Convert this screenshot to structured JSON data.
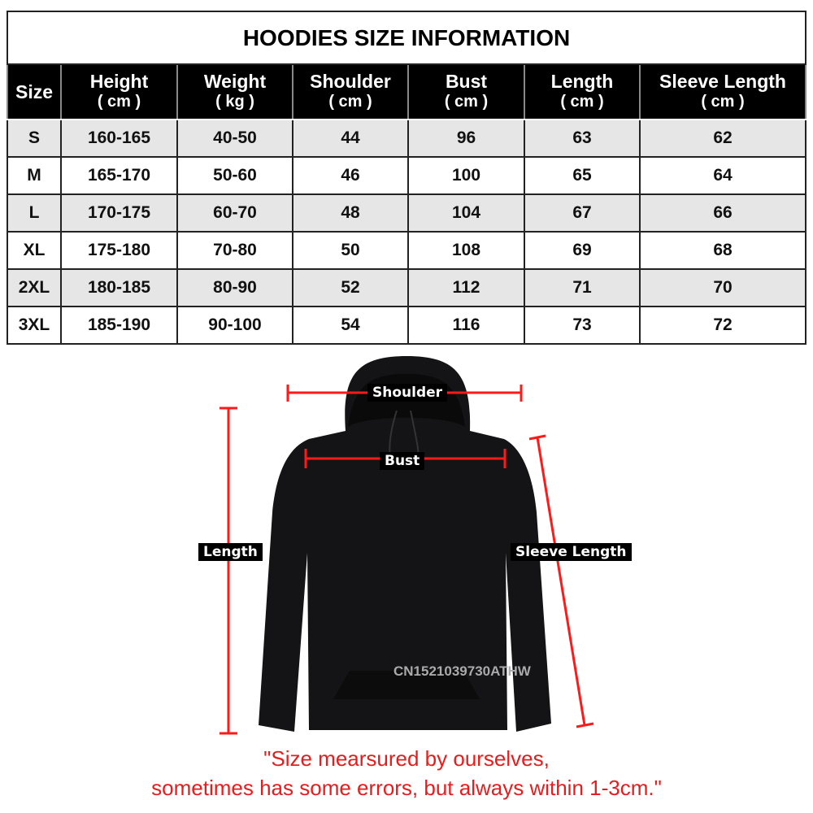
{
  "title": "HOODIES SIZE INFORMATION",
  "headers": [
    {
      "label": "Size",
      "unit": ""
    },
    {
      "label": "Height",
      "unit": "( cm )"
    },
    {
      "label": "Weight",
      "unit": "( kg )"
    },
    {
      "label": "Shoulder",
      "unit": "( cm )"
    },
    {
      "label": "Bust",
      "unit": "( cm )"
    },
    {
      "label": "Length",
      "unit": "( cm )"
    },
    {
      "label": "Sleeve Length",
      "unit": "( cm )"
    }
  ],
  "rows": [
    [
      "S",
      "160-165",
      "40-50",
      "44",
      "96",
      "63",
      "62"
    ],
    [
      "M",
      "165-170",
      "50-60",
      "46",
      "100",
      "65",
      "64"
    ],
    [
      "L",
      "170-175",
      "60-70",
      "48",
      "104",
      "67",
      "66"
    ],
    [
      "XL",
      "175-180",
      "70-80",
      "50",
      "108",
      "69",
      "68"
    ],
    [
      "2XL",
      "180-185",
      "80-90",
      "52",
      "112",
      "71",
      "70"
    ],
    [
      "3XL",
      "185-190",
      "90-100",
      "54",
      "116",
      "73",
      "72"
    ]
  ],
  "diagram": {
    "shoulder": "Shoulder",
    "bust": "Bust",
    "length": "Length",
    "sleeve": "Sleeve Length",
    "watermark": "CN1521039730ATHW",
    "measure_color": "#ff1a1a"
  },
  "note": {
    "line1": "\"Size mearsured by ourselves,",
    "line2": "sometimes has some errors, but always within 1-3cm.\""
  }
}
